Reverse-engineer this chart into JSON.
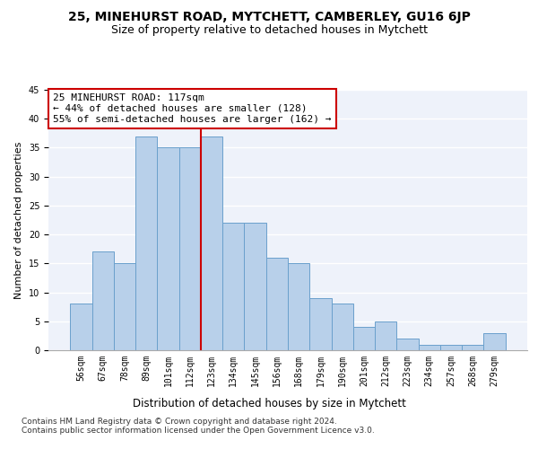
{
  "title": "25, MINEHURST ROAD, MYTCHETT, CAMBERLEY, GU16 6JP",
  "subtitle": "Size of property relative to detached houses in Mytchett",
  "xlabel": "Distribution of detached houses by size in Mytchett",
  "ylabel": "Number of detached properties",
  "categories": [
    "56sqm",
    "67sqm",
    "78sqm",
    "89sqm",
    "101sqm",
    "112sqm",
    "123sqm",
    "134sqm",
    "145sqm",
    "156sqm",
    "168sqm",
    "179sqm",
    "190sqm",
    "201sqm",
    "212sqm",
    "223sqm",
    "234sqm",
    "257sqm",
    "268sqm",
    "279sqm"
  ],
  "values": [
    8,
    17,
    15,
    37,
    35,
    35,
    37,
    22,
    22,
    16,
    15,
    9,
    8,
    4,
    5,
    2,
    1,
    1,
    1,
    3
  ],
  "bar_color": "#b8d0ea",
  "bar_edge_color": "#6aa0cc",
  "background_color": "#eef2fa",
  "grid_color": "#ffffff",
  "ref_line_index": 5.5,
  "ref_line_color": "#cc0000",
  "annotation_text": "25 MINEHURST ROAD: 117sqm\n← 44% of detached houses are smaller (128)\n55% of semi-detached houses are larger (162) →",
  "annotation_box_color": "#ffffff",
  "annotation_box_edge_color": "#cc0000",
  "ylim": [
    0,
    45
  ],
  "yticks": [
    0,
    5,
    10,
    15,
    20,
    25,
    30,
    35,
    40,
    45
  ],
  "footer_text": "Contains HM Land Registry data © Crown copyright and database right 2024.\nContains public sector information licensed under the Open Government Licence v3.0.",
  "title_fontsize": 10,
  "subtitle_fontsize": 9,
  "xlabel_fontsize": 8.5,
  "ylabel_fontsize": 8,
  "tick_fontsize": 7,
  "annotation_fontsize": 8,
  "footer_fontsize": 6.5
}
